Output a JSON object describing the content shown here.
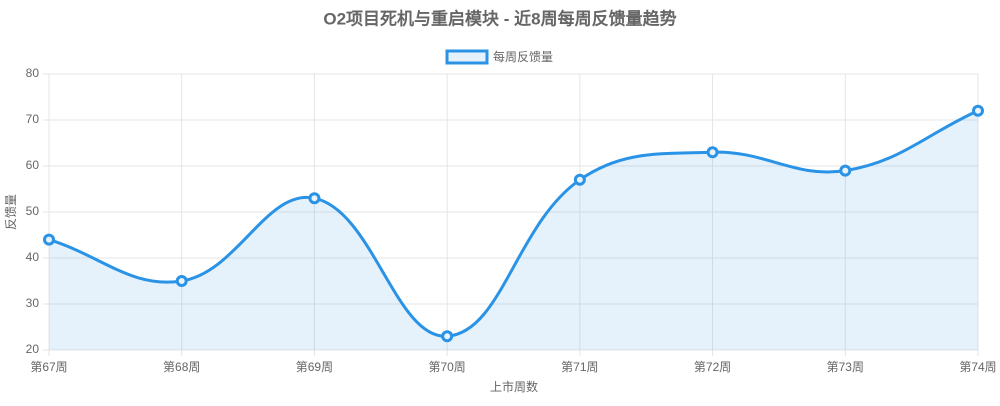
{
  "chart_data": {
    "type": "line",
    "title": "O2项目死机与重启模块 - 近8周每周反馈量趋势",
    "x_label": "上市周数",
    "y_label": "反馈量",
    "categories": [
      "第67周",
      "第68周",
      "第69周",
      "第70周",
      "第71周",
      "第72周",
      "第73周",
      "第74周"
    ],
    "series": [
      {
        "name": "每周反馈量",
        "color": "#2a93e6",
        "values": [
          44,
          35,
          53,
          23,
          57,
          63,
          59,
          72
        ]
      }
    ],
    "ylim": [
      20,
      80
    ],
    "yticks": [
      20,
      30,
      40,
      50,
      60,
      70,
      80
    ],
    "grid": true,
    "fill": true,
    "legend": "top"
  }
}
